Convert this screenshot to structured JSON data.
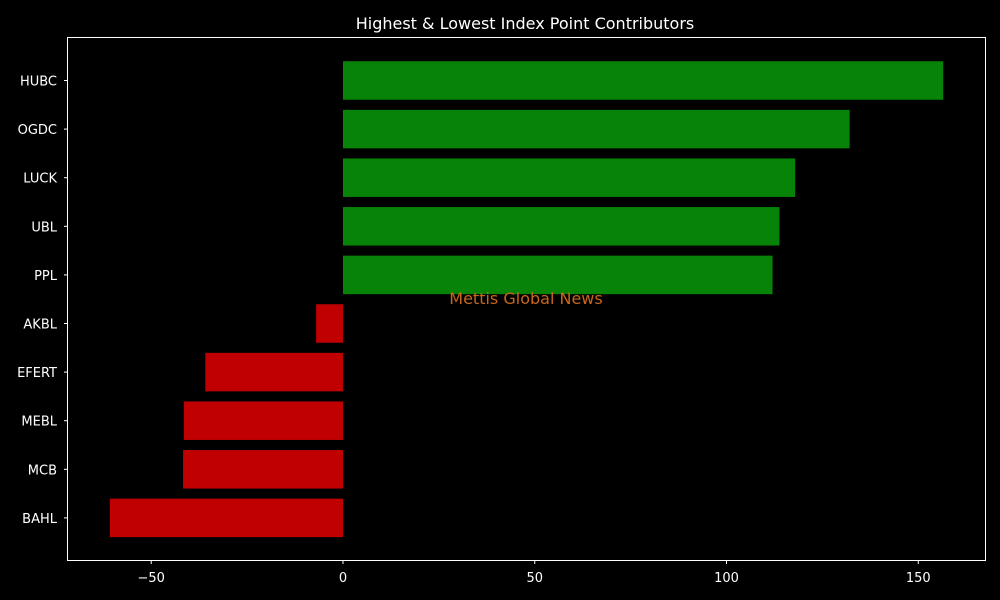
{
  "chart_data": {
    "type": "bar",
    "orientation": "horizontal",
    "title": "Highest & Lowest Index Point Contributors",
    "categories": [
      "HUBC",
      "OGDC",
      "LUCK",
      "UBL",
      "PPL",
      "AKBL",
      "EFERT",
      "MEBL",
      "MCB",
      "BAHL"
    ],
    "values": [
      156.5,
      132.1,
      117.9,
      113.8,
      112.0,
      -7.0,
      -35.9,
      -41.5,
      -41.7,
      -60.8
    ],
    "xlim": [
      -71.7,
      167.4
    ],
    "xticks": [
      -50,
      0,
      50,
      100,
      150
    ],
    "xtick_labels": [
      "−50",
      "0",
      "50",
      "100",
      "150"
    ],
    "xlabel": "",
    "ylabel": "",
    "grid": false,
    "legend": "none",
    "watermark": "Mettis Global News",
    "colors": {
      "background": "#000000",
      "positive": "#078307",
      "negative": "#c00000",
      "text": "#ffffff",
      "axes": "#ffffff",
      "watermark": "#c8661a"
    }
  }
}
